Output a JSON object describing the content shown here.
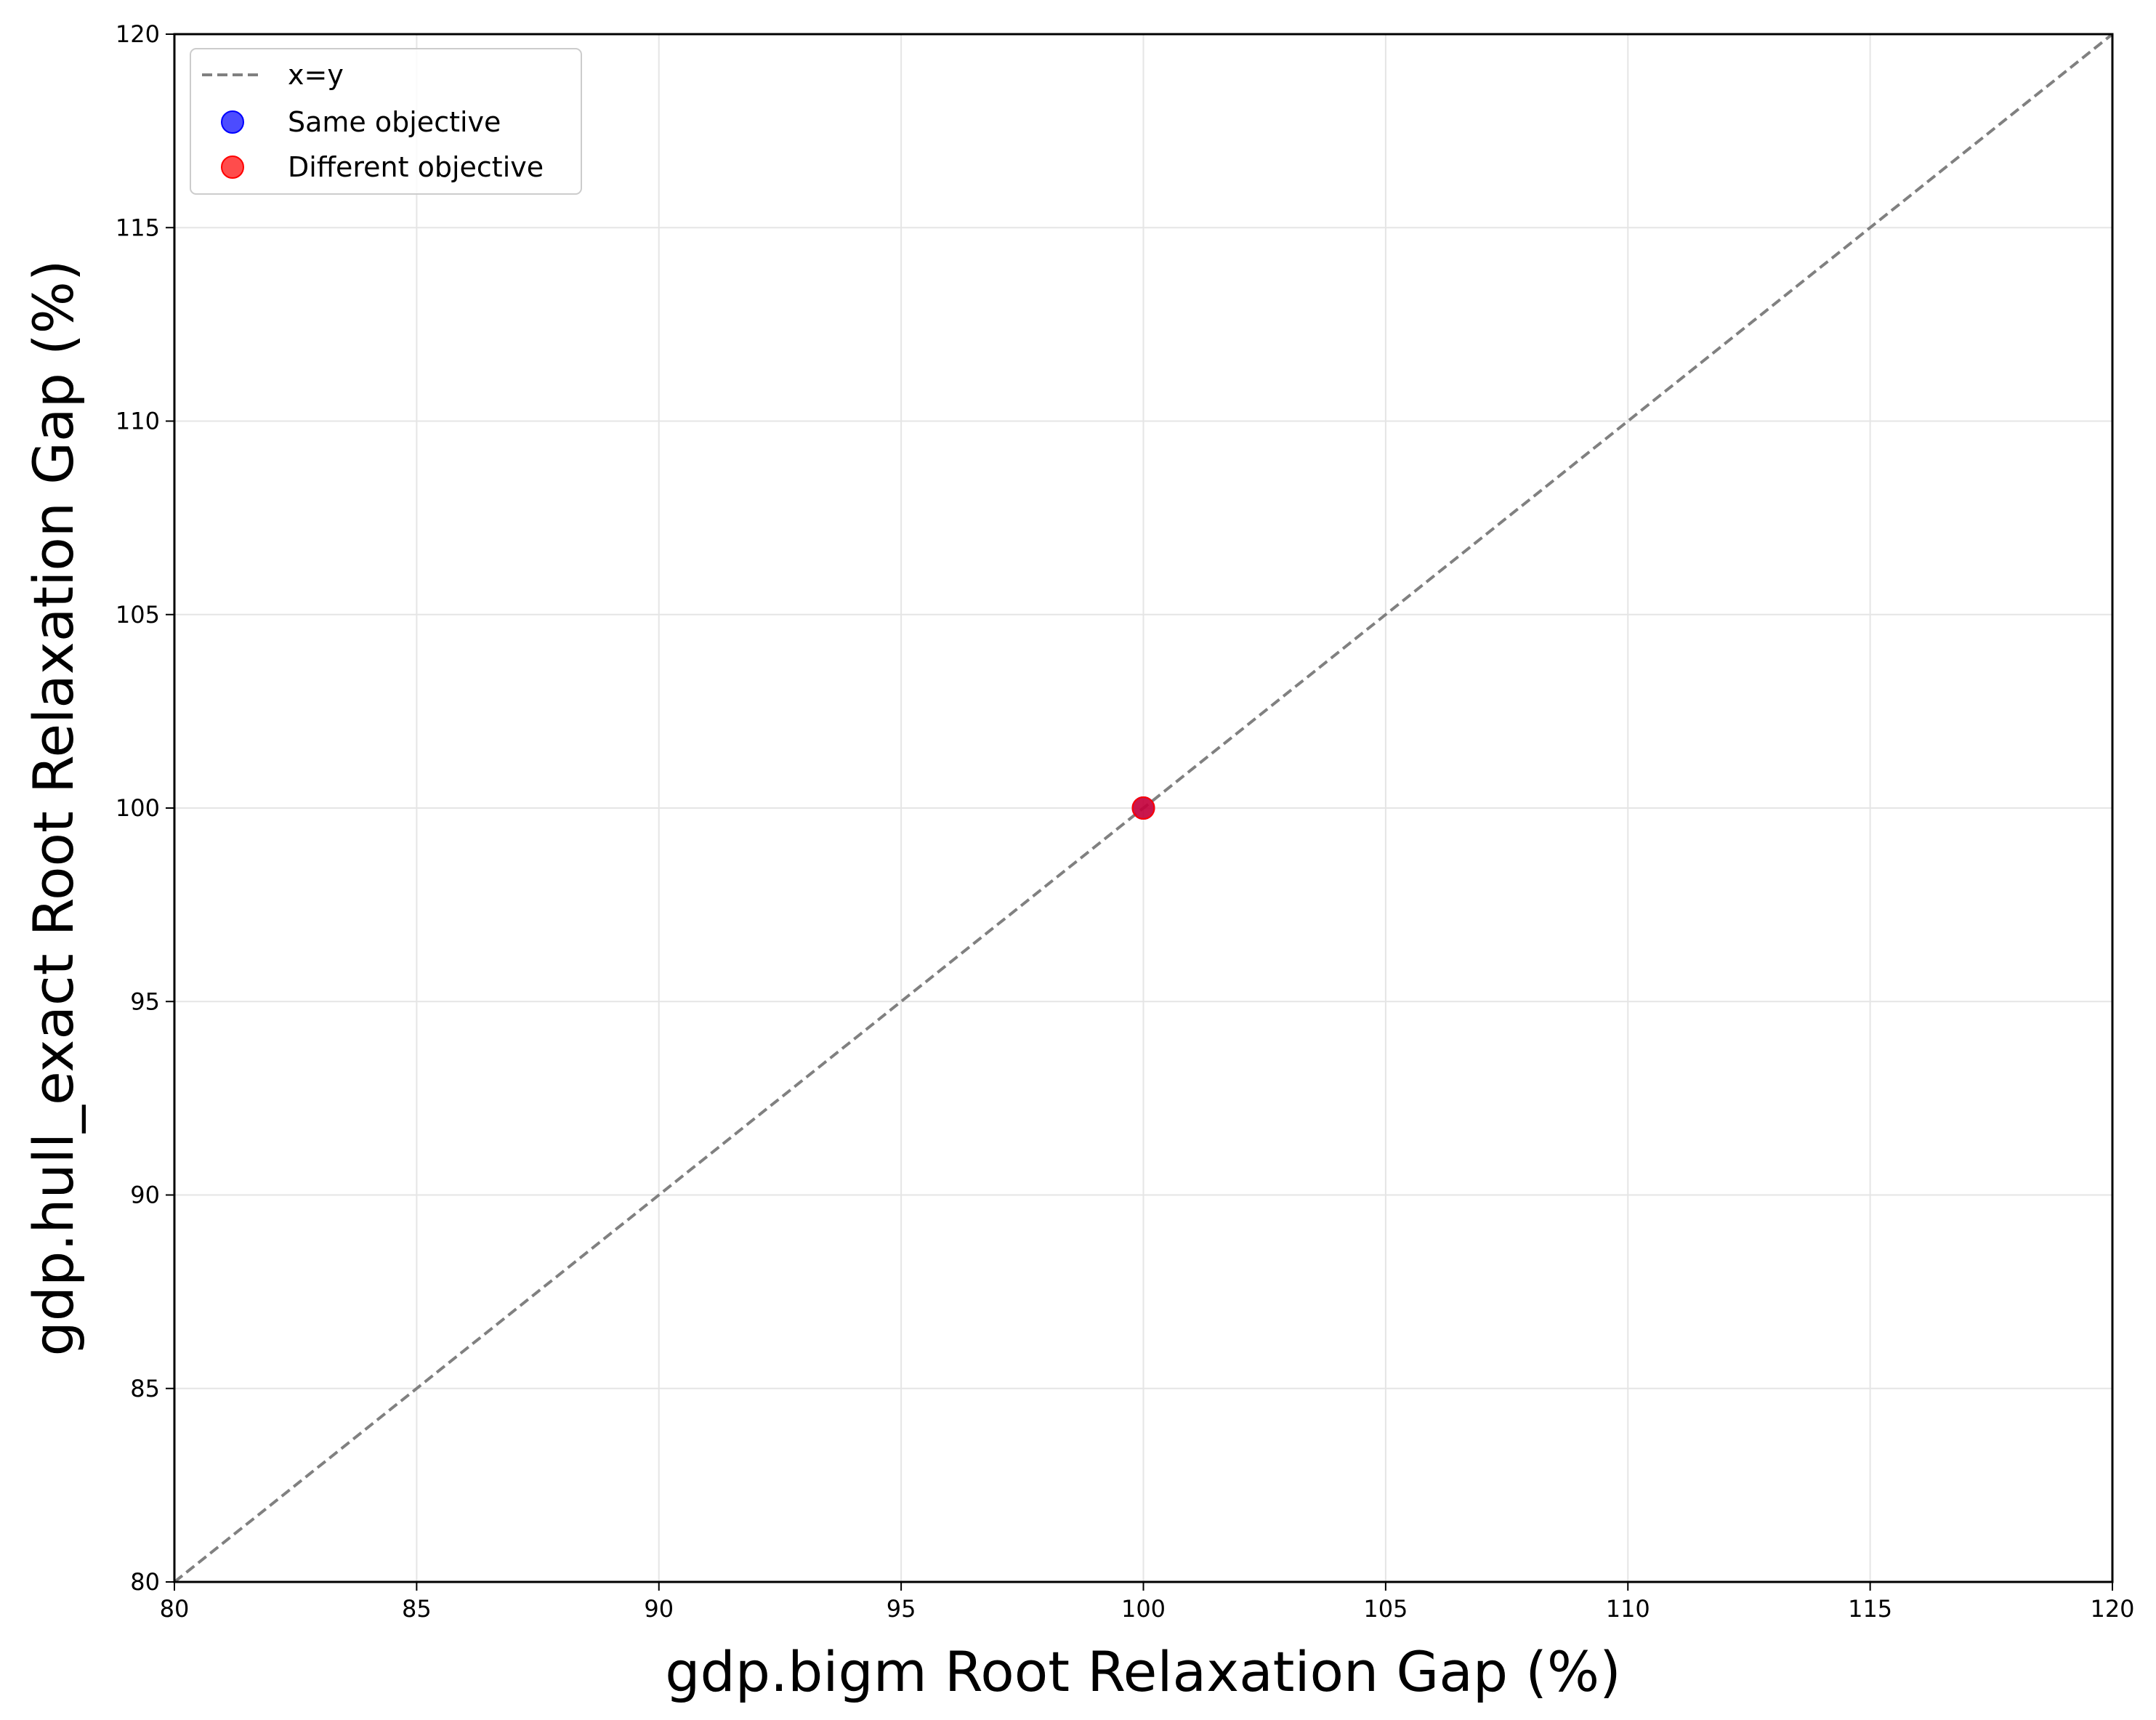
{
  "chart_data": {
    "type": "scatter",
    "title": "",
    "xlabel": "gdp.bigm Root Relaxation Gap (%)",
    "ylabel": "gdp.hull_exact Root Relaxation Gap (%)",
    "xlim": [
      80,
      120
    ],
    "ylim": [
      80,
      120
    ],
    "xticks": [
      "80",
      "85",
      "90",
      "95",
      "100",
      "105",
      "110",
      "115",
      "120"
    ],
    "yticks": [
      "80",
      "85",
      "90",
      "95",
      "100",
      "105",
      "110",
      "115",
      "120"
    ],
    "grid": true,
    "legend_position": "top-left",
    "reference_line": {
      "name": "x=y",
      "x": [
        80,
        120
      ],
      "y": [
        80,
        120
      ],
      "color": "#808080",
      "style": "dashed"
    },
    "series": [
      {
        "name": "Same objective",
        "color": "#0000ff",
        "points": [
          {
            "x": 100,
            "y": 100
          }
        ]
      },
      {
        "name": "Different objective",
        "color": "#ff0000",
        "points": [
          {
            "x": 100,
            "y": 100
          }
        ]
      }
    ]
  }
}
